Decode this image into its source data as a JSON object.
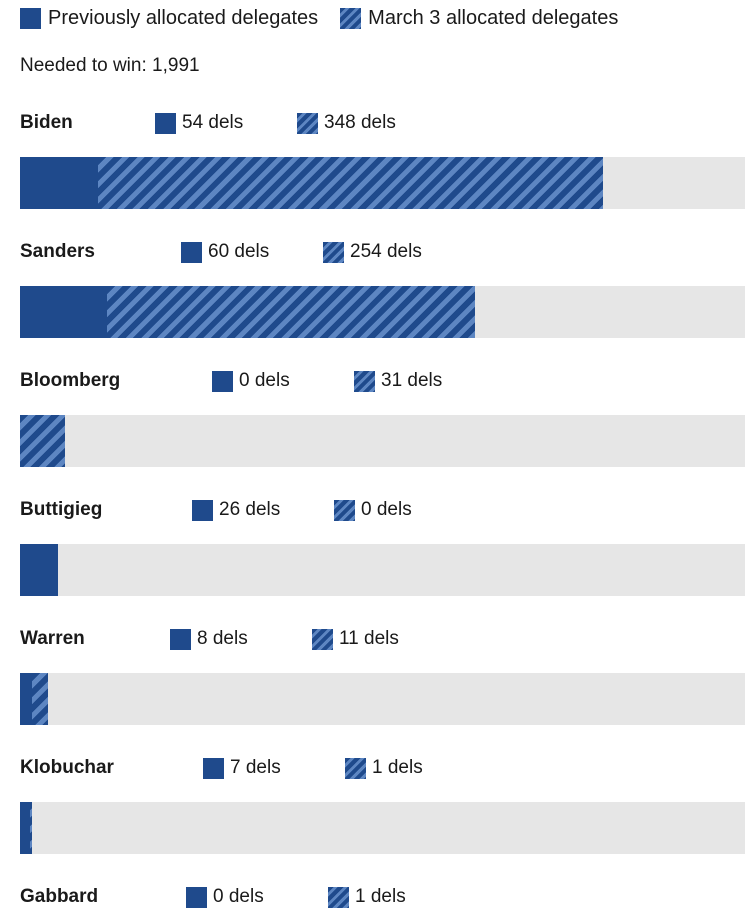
{
  "legend": {
    "previous_label": "Previously allocated delegates",
    "march3_label": "March 3 allocated delegates"
  },
  "needed_text": "Needed to win: 1,991",
  "colors": {
    "previous": "#1f4a8c",
    "march3_hatch": "#5d86c2",
    "track": "#e6e6e6"
  },
  "chart_data": {
    "type": "bar",
    "orientation": "horizontal",
    "stacked": true,
    "needed_to_win": 1991,
    "xlim": [
      0,
      500
    ],
    "categories": [
      "Biden",
      "Sanders",
      "Bloomberg",
      "Buttigieg",
      "Warren",
      "Klobuchar",
      "Gabbard"
    ],
    "series": [
      {
        "name": "Previously allocated delegates",
        "values": [
          54,
          60,
          0,
          26,
          8,
          7,
          0
        ]
      },
      {
        "name": "March 3 allocated delegates",
        "values": [
          348,
          254,
          31,
          0,
          11,
          1,
          1
        ]
      }
    ],
    "rows": [
      {
        "name": "Biden",
        "prev_text": "54 dels",
        "march_text": "348 dels",
        "prev": 54,
        "march": 348
      },
      {
        "name": "Sanders",
        "prev_text": "60 dels",
        "march_text": "254 dels",
        "prev": 60,
        "march": 254
      },
      {
        "name": "Bloomberg",
        "prev_text": "0 dels",
        "march_text": "31 dels",
        "prev": 0,
        "march": 31
      },
      {
        "name": "Buttigieg",
        "prev_text": "26 dels",
        "march_text": "0 dels",
        "prev": 26,
        "march": 0
      },
      {
        "name": "Warren",
        "prev_text": "8 dels",
        "march_text": "11 dels",
        "prev": 8,
        "march": 11
      },
      {
        "name": "Klobuchar",
        "prev_text": "7 dels",
        "march_text": "1 dels",
        "prev": 7,
        "march": 1
      },
      {
        "name": "Gabbard",
        "prev_text": "0 dels",
        "march_text": "1 dels",
        "prev": 0,
        "march": 1
      }
    ]
  }
}
